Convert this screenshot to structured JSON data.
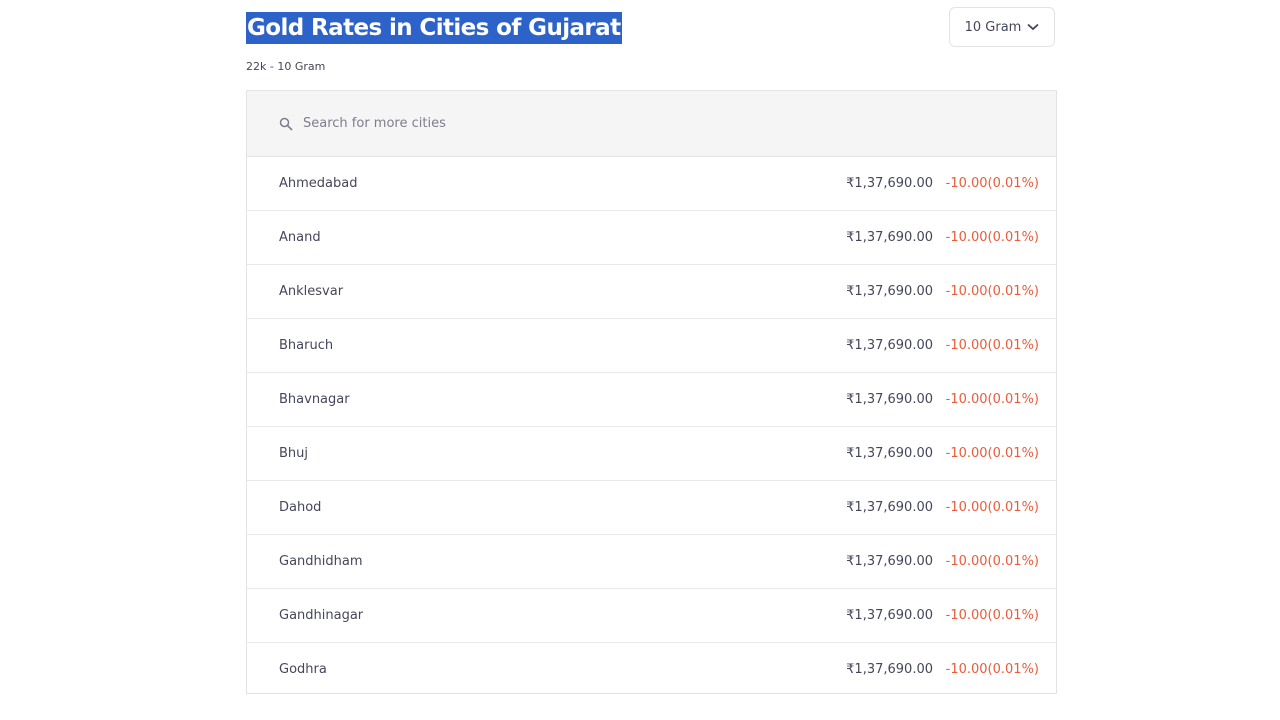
{
  "header": {
    "title": "Gold Rates in Cities of Gujarat",
    "subtitle": "22k - 10 Gram",
    "unit_select": "10 Gram"
  },
  "search": {
    "placeholder": "Search for more cities"
  },
  "table": {
    "rows": [
      [
        "Ahmedabad",
        "₹1,37,690.00",
        "-10.00(0.01%)"
      ],
      [
        "Anand",
        "₹1,37,690.00",
        "-10.00(0.01%)"
      ],
      [
        "Anklesvar",
        "₹1,37,690.00",
        "-10.00(0.01%)"
      ],
      [
        "Bharuch",
        "₹1,37,690.00",
        "-10.00(0.01%)"
      ],
      [
        "Bhavnagar",
        "₹1,37,690.00",
        "-10.00(0.01%)"
      ],
      [
        "Bhuj",
        "₹1,37,690.00",
        "-10.00(0.01%)"
      ],
      [
        "Dahod",
        "₹1,37,690.00",
        "-10.00(0.01%)"
      ],
      [
        "Gandhidham",
        "₹1,37,690.00",
        "-10.00(0.01%)"
      ],
      [
        "Gandhinagar",
        "₹1,37,690.00",
        "-10.00(0.01%)"
      ],
      [
        "Godhra",
        "₹1,37,690.00",
        "-10.00(0.01%)"
      ]
    ]
  }
}
